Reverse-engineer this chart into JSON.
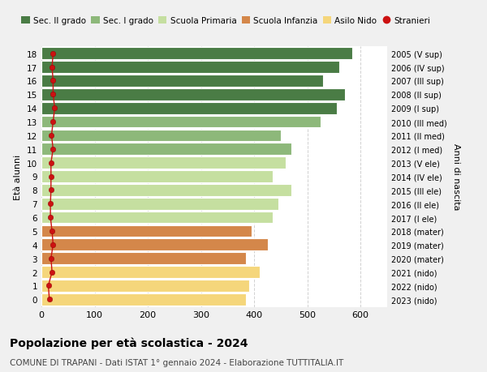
{
  "ages": [
    0,
    1,
    2,
    3,
    4,
    5,
    6,
    7,
    8,
    9,
    10,
    11,
    12,
    13,
    14,
    15,
    16,
    17,
    18
  ],
  "years_labels": [
    "2023 (nido)",
    "2022 (nido)",
    "2021 (nido)",
    "2020 (mater)",
    "2019 (mater)",
    "2018 (mater)",
    "2017 (I ele)",
    "2016 (II ele)",
    "2015 (III ele)",
    "2014 (IV ele)",
    "2013 (V ele)",
    "2012 (I med)",
    "2011 (II med)",
    "2010 (III med)",
    "2009 (I sup)",
    "2008 (II sup)",
    "2007 (III sup)",
    "2006 (IV sup)",
    "2005 (V sup)"
  ],
  "bar_values": [
    385,
    390,
    410,
    385,
    425,
    395,
    435,
    445,
    470,
    435,
    460,
    470,
    450,
    525,
    555,
    570,
    530,
    560,
    585
  ],
  "stranieri_values": [
    15,
    13,
    20,
    18,
    22,
    20,
    17,
    17,
    18,
    18,
    18,
    22,
    19,
    22,
    25,
    22,
    22,
    20,
    22
  ],
  "bar_colors": [
    "#f5d67b",
    "#f5d67b",
    "#f5d67b",
    "#d4874a",
    "#d4874a",
    "#d4874a",
    "#c5dfa0",
    "#c5dfa0",
    "#c5dfa0",
    "#c5dfa0",
    "#c5dfa0",
    "#8db87a",
    "#8db87a",
    "#8db87a",
    "#4a7c45",
    "#4a7c45",
    "#4a7c45",
    "#4a7c45",
    "#4a7c45"
  ],
  "stranieri_color": "#cc1111",
  "stranieri_line_color": "#cc1111",
  "legend_labels": [
    "Sec. II grado",
    "Sec. I grado",
    "Scuola Primaria",
    "Scuola Infanzia",
    "Asilo Nido",
    "Stranieri"
  ],
  "legend_colors": [
    "#4a7c45",
    "#8db87a",
    "#c5dfa0",
    "#d4874a",
    "#f5d67b",
    "#cc1111"
  ],
  "ylabel": "Età alunni",
  "right_ylabel": "Anni di nascita",
  "title": "Popolazione per età scolastica - 2024",
  "subtitle": "COMUNE DI TRAPANI - Dati ISTAT 1° gennaio 2024 - Elaborazione TUTTITALIA.IT",
  "xlim": [
    0,
    650
  ],
  "xticks": [
    0,
    100,
    200,
    300,
    400,
    500,
    600
  ],
  "background_color": "#f0f0f0",
  "bar_background": "#ffffff",
  "grid_color": "#cccccc"
}
